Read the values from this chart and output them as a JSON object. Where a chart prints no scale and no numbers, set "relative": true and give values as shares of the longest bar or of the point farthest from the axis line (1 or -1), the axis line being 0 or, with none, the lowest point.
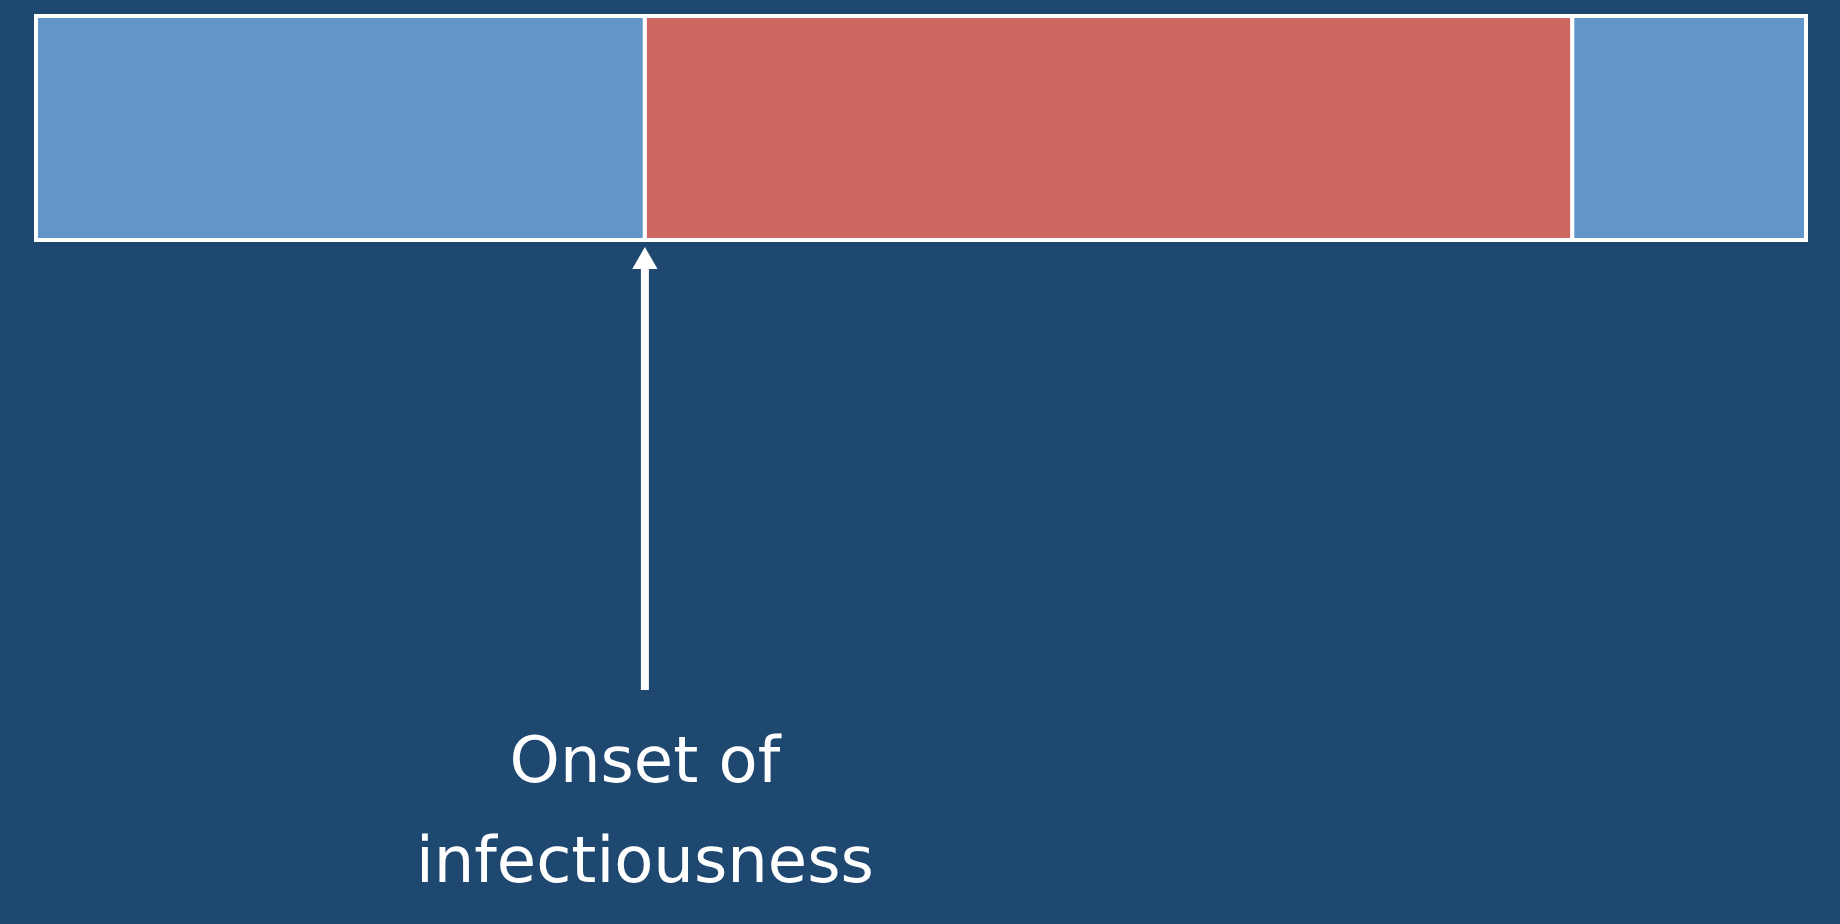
{
  "chart_data": {
    "type": "bar",
    "orientation": "horizontal",
    "stacked": true,
    "relative": true,
    "categories": [
      null
    ],
    "series": [
      {
        "color": "#6296c8",
        "values": [
          0.344
        ]
      },
      {
        "color": "#cc6861",
        "values": [
          0.524
        ]
      },
      {
        "color": "#6296c8",
        "values": [
          0.132
        ]
      }
    ],
    "annotations": [
      {
        "text": "Onset of\ninfectiousness",
        "x": 0.344
      }
    ]
  }
}
